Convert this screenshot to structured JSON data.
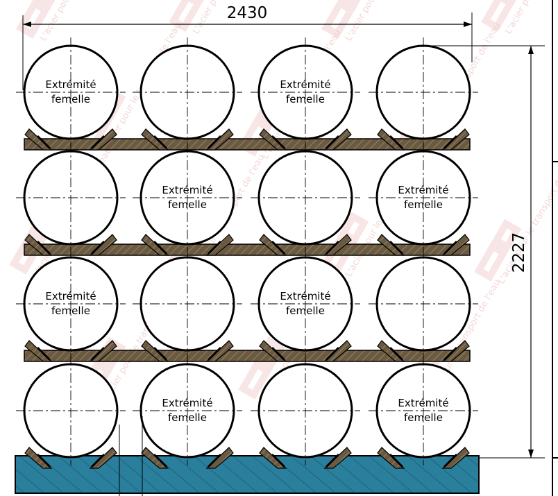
{
  "dimensions": {
    "width_label": "2430",
    "height_label": "2227"
  },
  "pipes": {
    "rows": 4,
    "cols": 4,
    "label_line1": "Extrémité",
    "label_line2": "femelle",
    "labeled": [
      [
        true,
        false,
        true,
        false
      ],
      [
        false,
        true,
        false,
        true
      ],
      [
        true,
        false,
        true,
        false
      ],
      [
        false,
        true,
        false,
        true
      ]
    ]
  },
  "watermark": {
    "text": "L'acier pour le transport de l'eau"
  },
  "colors": {
    "timber": "#6b5a42",
    "base": "#2a7f9c",
    "line": "#000000",
    "watermark": "#e8b8b8"
  }
}
